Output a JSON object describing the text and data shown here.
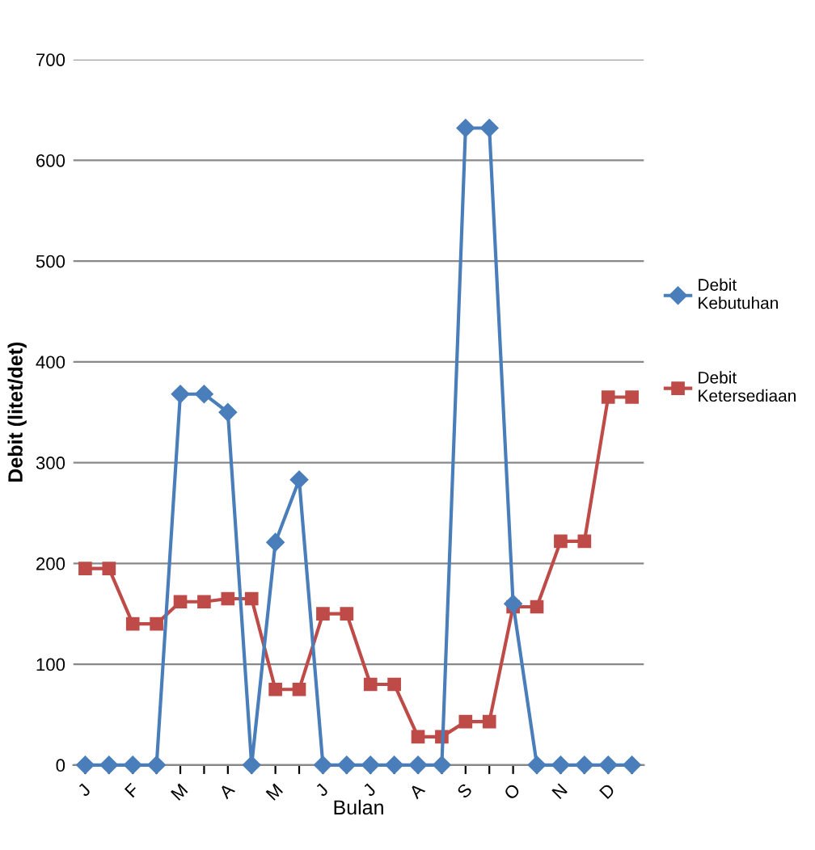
{
  "chart_data": {
    "type": "line",
    "xlabel": "Bulan",
    "ylabel": "Debit (litet/det)",
    "categories": [
      "J",
      null,
      "F",
      null,
      "M",
      null,
      "A",
      null,
      "M",
      null,
      "J",
      null,
      "J",
      null,
      "A",
      null,
      "S",
      null,
      "O",
      null,
      "N",
      null,
      "D",
      null
    ],
    "series": [
      {
        "name": "Debit\nKebutuhan",
        "color": "#4a7ebb",
        "marker": "diamond",
        "values": [
          0,
          0,
          0,
          0,
          368,
          368,
          350,
          0,
          221,
          283,
          0,
          0,
          0,
          0,
          0,
          0,
          632,
          632,
          160,
          0,
          0,
          0,
          0,
          0
        ]
      },
      {
        "name": "Debit\nKetersediaan",
        "color": "#be4b48",
        "marker": "square",
        "values": [
          195,
          195,
          140,
          140,
          162,
          162,
          165,
          165,
          75,
          75,
          150,
          150,
          80,
          80,
          28,
          28,
          43,
          43,
          157,
          157,
          222,
          222,
          365,
          365
        ]
      }
    ],
    "ylim": [
      0,
      700
    ],
    "yticks": [
      0,
      100,
      200,
      300,
      400,
      500,
      600,
      700
    ],
    "grid": "y",
    "legend": "right",
    "line_style": "solid"
  }
}
